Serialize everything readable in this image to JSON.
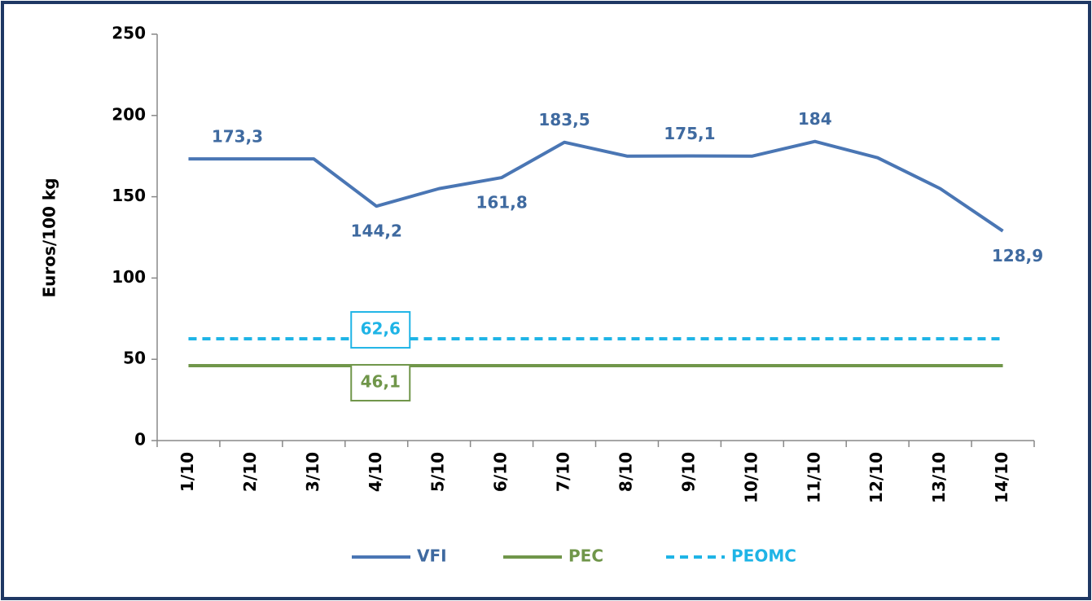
{
  "chart_data": {
    "type": "line",
    "y_label": "Euros/100 kg",
    "categories": [
      "1/10",
      "2/10",
      "3/10",
      "4/10",
      "5/10",
      "6/10",
      "7/10",
      "8/10",
      "9/10",
      "10/10",
      "11/10",
      "12/10",
      "13/10",
      "14/10"
    ],
    "series": [
      {
        "name": "VFI",
        "color": "#4a76b4",
        "label_color": "#3f6aa0",
        "dash": false,
        "values": [
          173.3,
          173.3,
          173.3,
          144.2,
          155,
          161.8,
          183.5,
          175,
          175.1,
          175,
          184,
          174,
          155,
          128.9
        ],
        "value_labels": [
          "173,3",
          null,
          null,
          "144,2",
          null,
          "161,8",
          "183,5",
          null,
          "175,1",
          null,
          "184",
          null,
          null,
          "128,9"
        ]
      },
      {
        "name": "PEC",
        "color": "#70964a",
        "label_color": "#70964a",
        "dash": false,
        "boxed": true,
        "values": [
          46.1,
          46.1,
          46.1,
          46.1,
          46.1,
          46.1,
          46.1,
          46.1,
          46.1,
          46.1,
          46.1,
          46.1,
          46.1,
          46.1
        ],
        "value_labels": [
          null,
          null,
          null,
          "46,1",
          null,
          null,
          null,
          null,
          null,
          null,
          null,
          null,
          null,
          null
        ]
      },
      {
        "name": "PEOMC",
        "color": "#1fb4e6",
        "label_color": "#1fb4e6",
        "dash": true,
        "boxed": true,
        "values": [
          62.6,
          62.6,
          62.6,
          62.6,
          62.6,
          62.6,
          62.6,
          62.6,
          62.6,
          62.6,
          62.6,
          62.6,
          62.6,
          62.6
        ],
        "value_labels": [
          null,
          null,
          null,
          "62,6",
          null,
          null,
          null,
          null,
          null,
          null,
          null,
          null,
          null,
          null
        ]
      }
    ],
    "ylim": [
      0,
      250
    ],
    "yticks": [
      0,
      50,
      100,
      150,
      200,
      250
    ],
    "grid": false,
    "legend": "bottom"
  }
}
